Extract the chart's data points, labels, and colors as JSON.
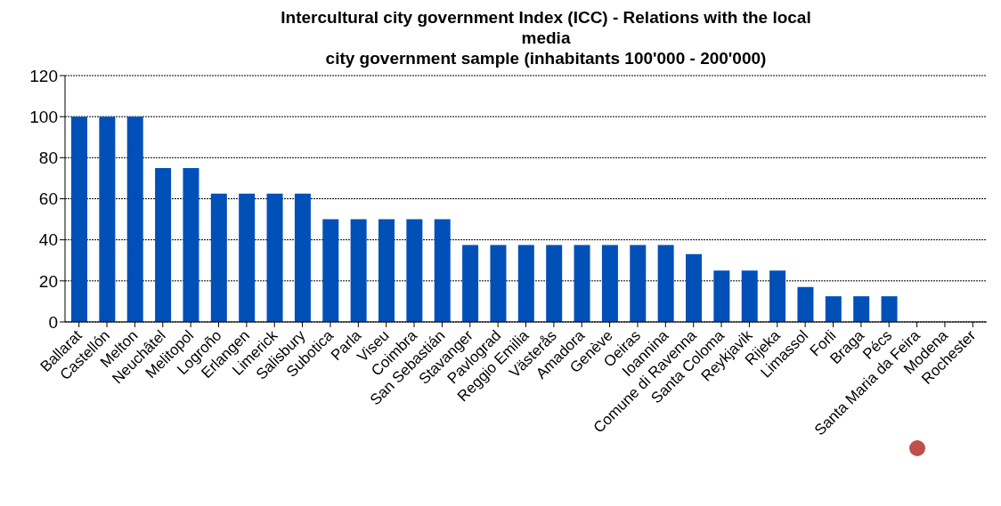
{
  "chart_data": {
    "type": "bar",
    "title": "Intercultural city government Index (ICC) - Relations with the  local media",
    "subtitle": "city government sample (inhabitants 100'000 - 200'000)",
    "categories": [
      "Ballarat",
      "Castellón",
      "Melton",
      "Neuchâtel",
      "Melitopol",
      "Logroño",
      "Erlangen",
      "Limerick",
      "Salisbury",
      "Subotica",
      "Parla",
      "Viseu",
      "Coimbra",
      "San Sebastián",
      "Stavanger",
      "Pavlograd",
      "Reggio Emilia",
      "Västerås",
      "Amadora",
      "Genève",
      "Oeiras",
      "Ioannina",
      "Comune di Ravenna",
      "Santa Coloma",
      "Reykjavik",
      "Rijeka",
      "Limassol",
      "Forli",
      "Braga",
      "Pécs",
      "Santa Maria da Feira",
      "Modena",
      "Rochester"
    ],
    "values": [
      100,
      100,
      100,
      75,
      75,
      62.5,
      62.5,
      62.5,
      62.5,
      50,
      50,
      50,
      50,
      50,
      37.5,
      37.5,
      37.5,
      37.5,
      37.5,
      37.5,
      37.5,
      37.5,
      33,
      25,
      25,
      25,
      17,
      12.5,
      12.5,
      12.5,
      0,
      0,
      0
    ],
    "color": "#0050b8",
    "ylim": [
      0,
      120
    ],
    "yticks": [
      0,
      20,
      40,
      60,
      80,
      100,
      120
    ],
    "grid": "y",
    "legend": false
  }
}
